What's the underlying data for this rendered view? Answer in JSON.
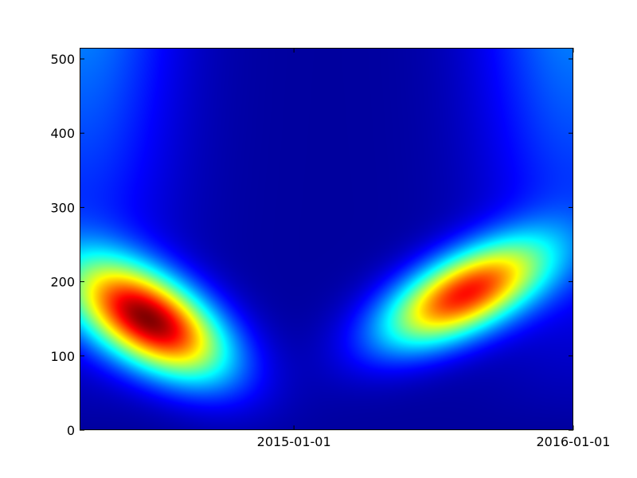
{
  "chart_data": {
    "type": "heatmap",
    "title": "",
    "xlabel": "",
    "ylabel": "",
    "colormap": "jet",
    "grid": false,
    "x_axis": {
      "type": "date",
      "range": [
        "2014-03-27",
        "2016-01-01"
      ],
      "ticks": [
        {
          "value": "2015-01-01",
          "label": "2015-01-01"
        },
        {
          "value": "2016-01-01",
          "label": "2016-01-01"
        }
      ]
    },
    "y_axis": {
      "range": [
        0,
        515
      ],
      "ticks": [
        0,
        100,
        200,
        300,
        400,
        500
      ]
    },
    "value_range": [
      0,
      1
    ],
    "hotspots": [
      {
        "date": "2014-06-25",
        "y": 150,
        "intensity": 0.96,
        "spread_days": 70,
        "spread_y": 55,
        "tilt": -0.55
      },
      {
        "date": "2015-08-10",
        "y": 185,
        "intensity": 0.84,
        "spread_days": 75,
        "spread_y": 50,
        "tilt": 0.6
      }
    ]
  }
}
